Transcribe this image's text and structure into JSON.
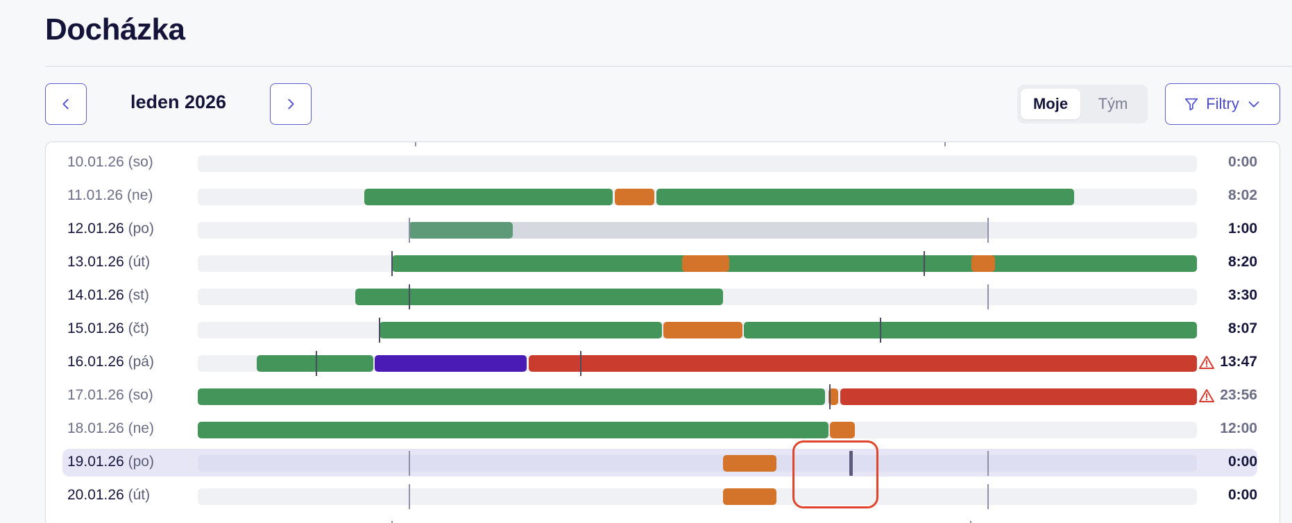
{
  "page": {
    "title": "Docházka"
  },
  "nav": {
    "month": "leden 2026",
    "prev_icon": "chevron-left-icon",
    "next_icon": "chevron-right-icon"
  },
  "toggle": {
    "options": [
      "Moje",
      "Tým"
    ],
    "selected": "Moje"
  },
  "filter": {
    "label": "Filtry",
    "icon": "filter-icon",
    "chevron": "chevron-down-icon"
  },
  "colors": {
    "work": "#43955a",
    "work_light": "#5e9a78",
    "pause": "#d4732a",
    "overtime": "#c93c2e",
    "absence": "#4a1bb5",
    "planned": "#d6d8e0",
    "accent": "#5b5bd6",
    "warning": "#d93a2b"
  },
  "rows": [
    {
      "date": "10.01.26",
      "weekday": "(so)",
      "total": "0:00"
    },
    {
      "date": "11.01.26",
      "weekday": "(ne)",
      "total": "8:02"
    },
    {
      "date": "12.01.26",
      "weekday": "(po)",
      "total": "1:00"
    },
    {
      "date": "13.01.26",
      "weekday": "(út)",
      "total": "8:20"
    },
    {
      "date": "14.01.26",
      "weekday": "(st)",
      "total": "3:30"
    },
    {
      "date": "15.01.26",
      "weekday": "(čt)",
      "total": "8:07"
    },
    {
      "date": "16.01.26",
      "weekday": "(pá)",
      "total": "13:47",
      "warning": true
    },
    {
      "date": "17.01.26",
      "weekday": "(so)",
      "total": "23:56",
      "warning": true
    },
    {
      "date": "18.01.26",
      "weekday": "(ne)",
      "total": "12:00"
    },
    {
      "date": "19.01.26",
      "weekday": "(po)",
      "total": "0:00",
      "selected": true
    },
    {
      "date": "20.01.26",
      "weekday": "(út)",
      "total": "0:00"
    }
  ]
}
